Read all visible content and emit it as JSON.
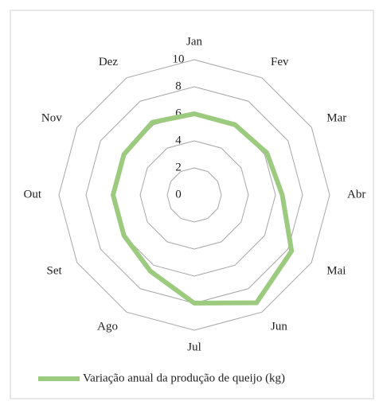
{
  "chart_data": {
    "type": "radar",
    "categories": [
      "Jan",
      "Fev",
      "Mar",
      "Abr",
      "Mai",
      "Jun",
      "Jul",
      "Ago",
      "Set",
      "Out",
      "Nov",
      "Dez"
    ],
    "series": [
      {
        "name": "Variação anual da produção de queijo (kg)",
        "color": "#9ccb80",
        "values": [
          6,
          6,
          6.2,
          6.5,
          8.3,
          9.2,
          8,
          6.5,
          6,
          6,
          6,
          6.2
        ]
      }
    ],
    "ylim": [
      0,
      10
    ],
    "yticks": [
      0,
      2,
      4,
      6,
      8,
      10
    ],
    "grid": true,
    "legend": "bottom"
  }
}
